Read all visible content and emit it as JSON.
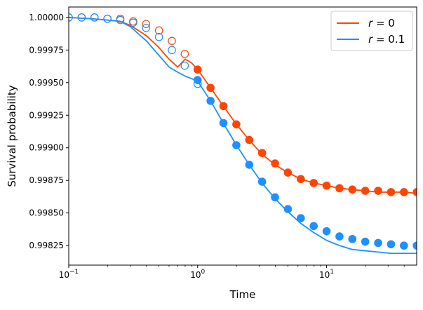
{
  "chart_data": {
    "type": "scatter",
    "xscale": "log",
    "xlim": [
      0.1,
      50
    ],
    "ylim": [
      0.9981,
      1.00008
    ],
    "xlabel": "Time",
    "ylabel": "Survival probability",
    "legend_position": "top-right",
    "xticks": [
      {
        "value": 0.1,
        "base": "10",
        "exp": "−1"
      },
      {
        "value": 1,
        "base": "10",
        "exp": "0"
      },
      {
        "value": 10,
        "base": "10",
        "exp": "1"
      }
    ],
    "yticks": [
      {
        "value": 1.0,
        "label": "1.00000"
      },
      {
        "value": 0.99975,
        "label": "0.99975"
      },
      {
        "value": 0.9995,
        "label": "0.99950"
      },
      {
        "value": 0.99925,
        "label": "0.99925"
      },
      {
        "value": 0.999,
        "label": "0.99900"
      },
      {
        "value": 0.99875,
        "label": "0.99875"
      },
      {
        "value": 0.9985,
        "label": "0.99850"
      },
      {
        "value": 0.99825,
        "label": "0.99825"
      }
    ],
    "series": [
      {
        "name": "r = 0",
        "legend_main": "r",
        "legend_rest": " = 0",
        "color": "#FF4500",
        "curve": [
          [
            0.1,
            1.0
          ],
          [
            0.15,
            0.99999
          ],
          [
            0.2,
            0.99998
          ],
          [
            0.25,
            0.99997
          ],
          [
            0.3,
            0.99994
          ],
          [
            0.4,
            0.99986
          ],
          [
            0.5,
            0.99977
          ],
          [
            0.6,
            0.99968
          ],
          [
            0.7,
            0.99962
          ],
          [
            0.8,
            0.99968
          ],
          [
            0.9,
            0.99965
          ],
          [
            1.0,
            0.9996
          ],
          [
            1.26,
            0.99946
          ],
          [
            1.58,
            0.99932
          ],
          [
            2.0,
            0.99918
          ],
          [
            2.51,
            0.99906
          ],
          [
            3.16,
            0.99895
          ],
          [
            3.98,
            0.99887
          ],
          [
            5.01,
            0.99881
          ],
          [
            6.31,
            0.99876
          ],
          [
            7.94,
            0.99873
          ],
          [
            10.0,
            0.99871
          ],
          [
            12.6,
            0.99869
          ],
          [
            15.8,
            0.99868
          ],
          [
            20.0,
            0.99867
          ],
          [
            25.1,
            0.99866
          ],
          [
            31.6,
            0.99866
          ],
          [
            39.8,
            0.99866
          ],
          [
            50,
            0.99865
          ]
        ],
        "points": [
          {
            "x": 0.1,
            "y": 1.0,
            "filled": false
          },
          {
            "x": 0.1259,
            "y": 1.0,
            "filled": false
          },
          {
            "x": 0.1585,
            "y": 1.0,
            "filled": false
          },
          {
            "x": 0.1995,
            "y": 0.99999,
            "filled": false
          },
          {
            "x": 0.2512,
            "y": 0.99999,
            "filled": false
          },
          {
            "x": 0.3162,
            "y": 0.99997,
            "filled": false
          },
          {
            "x": 0.3981,
            "y": 0.99995,
            "filled": false
          },
          {
            "x": 0.5012,
            "y": 0.9999,
            "filled": false
          },
          {
            "x": 0.631,
            "y": 0.99982,
            "filled": false
          },
          {
            "x": 0.7943,
            "y": 0.99972,
            "filled": false
          },
          {
            "x": 1.0,
            "y": 0.9996,
            "filled": true
          },
          {
            "x": 1.259,
            "y": 0.99946,
            "filled": true
          },
          {
            "x": 1.585,
            "y": 0.99932,
            "filled": true
          },
          {
            "x": 1.995,
            "y": 0.99918,
            "filled": true
          },
          {
            "x": 2.512,
            "y": 0.99906,
            "filled": true
          },
          {
            "x": 3.162,
            "y": 0.99896,
            "filled": true
          },
          {
            "x": 3.981,
            "y": 0.99888,
            "filled": true
          },
          {
            "x": 5.012,
            "y": 0.99881,
            "filled": true
          },
          {
            "x": 6.31,
            "y": 0.99876,
            "filled": true
          },
          {
            "x": 7.943,
            "y": 0.99873,
            "filled": true
          },
          {
            "x": 10.0,
            "y": 0.99871,
            "filled": true
          },
          {
            "x": 12.59,
            "y": 0.99869,
            "filled": true
          },
          {
            "x": 15.85,
            "y": 0.99868,
            "filled": true
          },
          {
            "x": 19.95,
            "y": 0.99867,
            "filled": true
          },
          {
            "x": 25.12,
            "y": 0.99867,
            "filled": true
          },
          {
            "x": 31.62,
            "y": 0.99866,
            "filled": true
          },
          {
            "x": 39.81,
            "y": 0.99866,
            "filled": true
          },
          {
            "x": 50.12,
            "y": 0.99866,
            "filled": true
          }
        ]
      },
      {
        "name": "r = 0.1",
        "legend_main": "r",
        "legend_rest": " = 0.1",
        "color": "#1E90FF",
        "curve": [
          [
            0.1,
            1.0
          ],
          [
            0.15,
            0.99999
          ],
          [
            0.2,
            0.99998
          ],
          [
            0.25,
            0.99997
          ],
          [
            0.3,
            0.99993
          ],
          [
            0.4,
            0.99982
          ],
          [
            0.5,
            0.99971
          ],
          [
            0.6,
            0.99962
          ],
          [
            0.7,
            0.99958
          ],
          [
            0.8,
            0.99955
          ],
          [
            0.9,
            0.99953
          ],
          [
            1.0,
            0.99951
          ],
          [
            1.26,
            0.99936
          ],
          [
            1.58,
            0.99919
          ],
          [
            2.0,
            0.99902
          ],
          [
            2.51,
            0.99887
          ],
          [
            3.16,
            0.99873
          ],
          [
            3.98,
            0.99861
          ],
          [
            5.01,
            0.99851
          ],
          [
            6.31,
            0.99842
          ],
          [
            7.94,
            0.99835
          ],
          [
            10.0,
            0.99829
          ],
          [
            12.6,
            0.99825
          ],
          [
            15.8,
            0.99822
          ],
          [
            20.0,
            0.99821
          ],
          [
            25.1,
            0.9982
          ],
          [
            31.6,
            0.99819
          ],
          [
            39.8,
            0.99819
          ],
          [
            50,
            0.99819
          ]
        ],
        "points": [
          {
            "x": 0.1,
            "y": 1.0,
            "filled": false
          },
          {
            "x": 0.1259,
            "y": 1.0,
            "filled": false
          },
          {
            "x": 0.1585,
            "y": 1.0,
            "filled": false
          },
          {
            "x": 0.1995,
            "y": 0.99999,
            "filled": false
          },
          {
            "x": 0.2512,
            "y": 0.99998,
            "filled": false
          },
          {
            "x": 0.3162,
            "y": 0.99996,
            "filled": false
          },
          {
            "x": 0.3981,
            "y": 0.99992,
            "filled": false
          },
          {
            "x": 0.5012,
            "y": 0.99985,
            "filled": false
          },
          {
            "x": 0.631,
            "y": 0.99975,
            "filled": false
          },
          {
            "x": 0.7943,
            "y": 0.99963,
            "filled": false
          },
          {
            "x": 1.0,
            "y": 0.99949,
            "filled": false
          },
          {
            "x": 1.0,
            "y": 0.99952,
            "filled": true
          },
          {
            "x": 1.259,
            "y": 0.99936,
            "filled": true
          },
          {
            "x": 1.585,
            "y": 0.99919,
            "filled": true
          },
          {
            "x": 1.995,
            "y": 0.99902,
            "filled": true
          },
          {
            "x": 2.512,
            "y": 0.99887,
            "filled": true
          },
          {
            "x": 3.162,
            "y": 0.99874,
            "filled": true
          },
          {
            "x": 3.981,
            "y": 0.99862,
            "filled": true
          },
          {
            "x": 5.012,
            "y": 0.99853,
            "filled": true
          },
          {
            "x": 6.31,
            "y": 0.99846,
            "filled": true
          },
          {
            "x": 7.943,
            "y": 0.9984,
            "filled": true
          },
          {
            "x": 10.0,
            "y": 0.99836,
            "filled": true
          },
          {
            "x": 12.59,
            "y": 0.99832,
            "filled": true
          },
          {
            "x": 15.85,
            "y": 0.9983,
            "filled": true
          },
          {
            "x": 19.95,
            "y": 0.99828,
            "filled": true
          },
          {
            "x": 25.12,
            "y": 0.99827,
            "filled": true
          },
          {
            "x": 31.62,
            "y": 0.99826,
            "filled": true
          },
          {
            "x": 39.81,
            "y": 0.99825,
            "filled": true
          },
          {
            "x": 50.12,
            "y": 0.99825,
            "filled": true
          }
        ]
      }
    ]
  }
}
